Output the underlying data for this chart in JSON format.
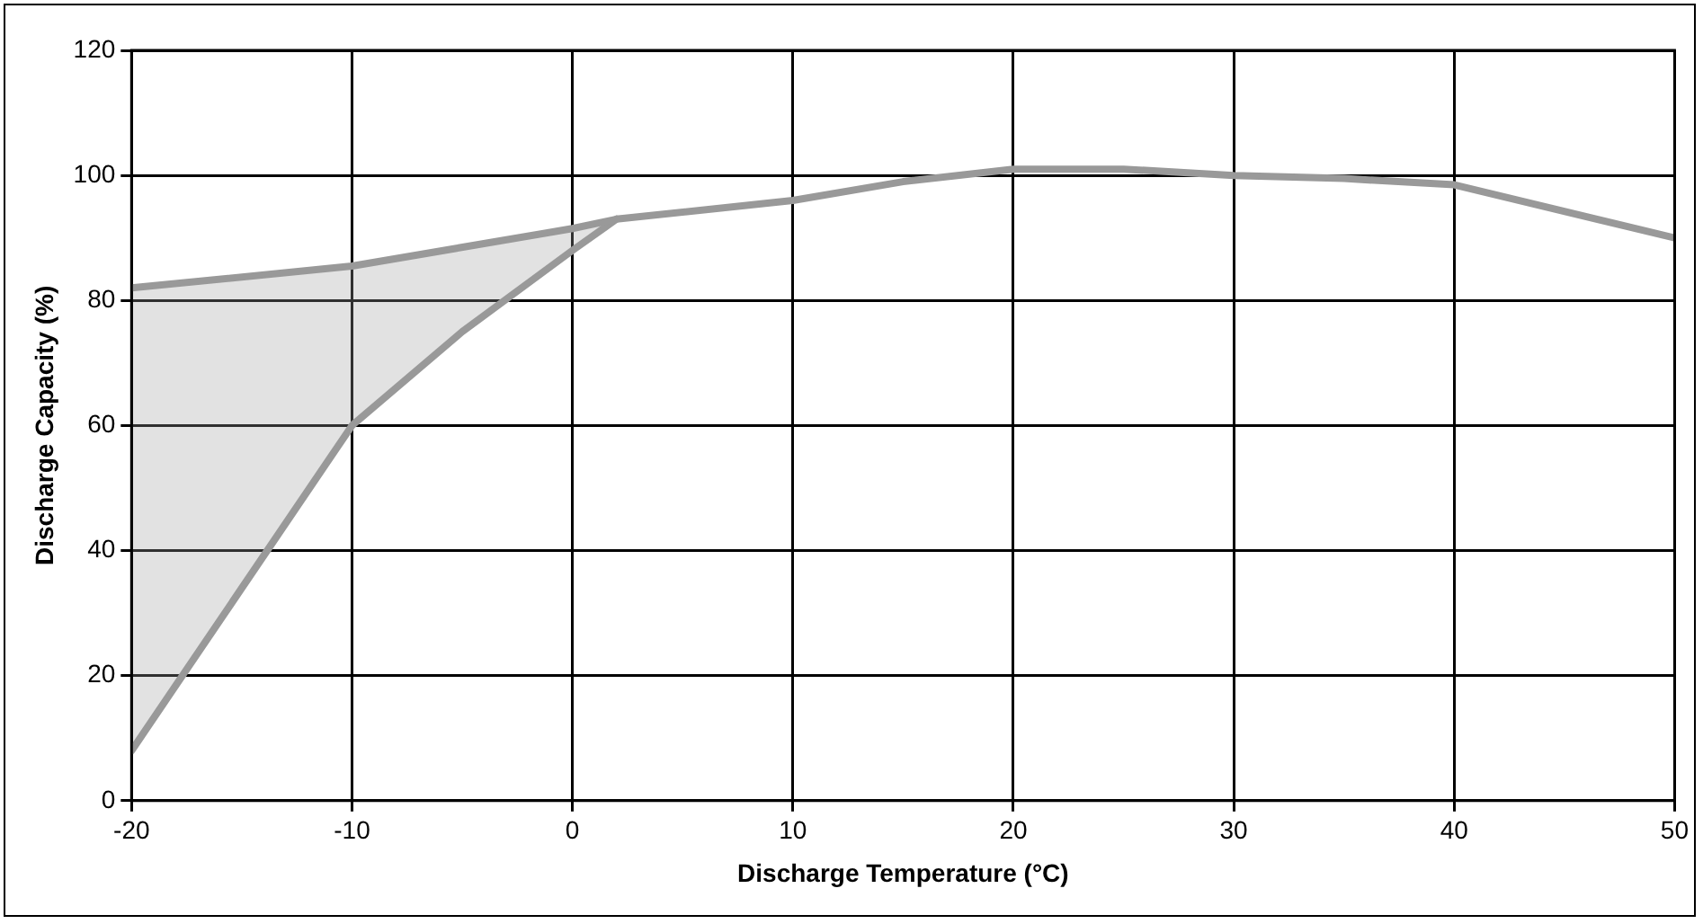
{
  "chart_data": {
    "type": "line",
    "xlabel": "Discharge Temperature (°C)",
    "ylabel": "Discharge Capacity (%)",
    "xlim": [
      -20,
      50
    ],
    "xticks": [
      -20,
      -10,
      0,
      10,
      20,
      30,
      40,
      50
    ],
    "ylim": [
      0,
      120
    ],
    "yticks": [
      0,
      20,
      40,
      60,
      80,
      100,
      120
    ],
    "grid": true,
    "legend": false,
    "marker": "none",
    "line_style": "solid",
    "series": [
      {
        "color": "#999999",
        "x": [
          -20,
          -10,
          0,
          2,
          10,
          15,
          20,
          25,
          30,
          35,
          40,
          50
        ],
        "values": [
          82,
          85.5,
          91.5,
          93,
          96,
          99,
          101,
          101,
          100,
          99.5,
          98.5,
          90
        ]
      },
      {
        "color": "#999999",
        "x": [
          -20,
          -10,
          -5,
          0,
          2
        ],
        "values": [
          8,
          60,
          75,
          88,
          93
        ],
        "lower": [
          8,
          60,
          75,
          88,
          93
        ],
        "upper": [
          82,
          85.5,
          88.5,
          91.5,
          93
        ]
      }
    ]
  }
}
